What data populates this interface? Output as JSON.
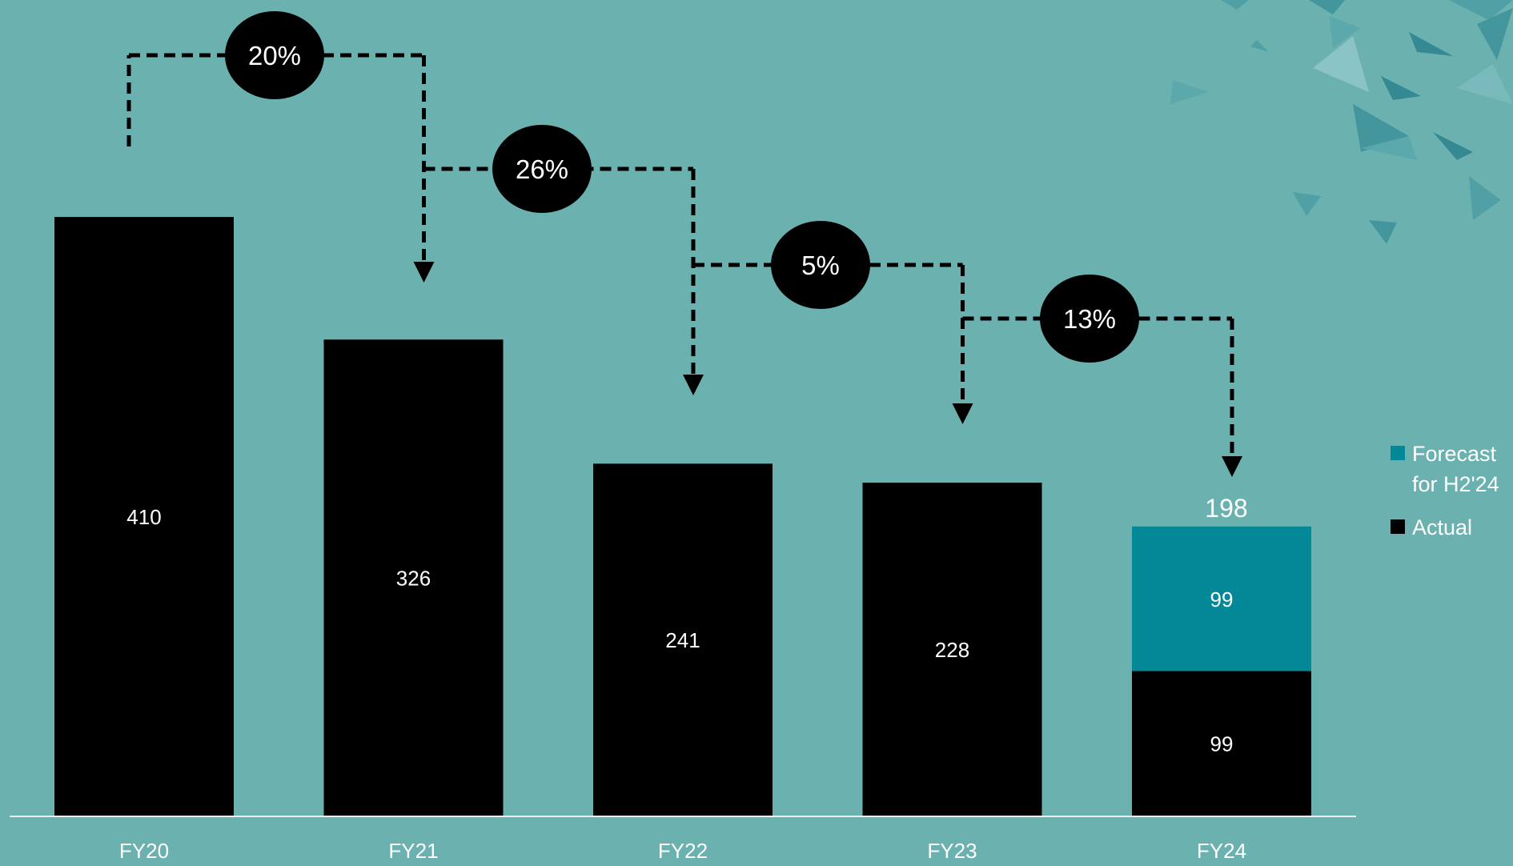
{
  "colors": {
    "background": "#6bb1b0",
    "actual": "#000000",
    "forecast": "#028896",
    "label_text": "#ffffff",
    "axis": "#e6f1f1",
    "decor": "#4a9da3"
  },
  "chart_data": {
    "type": "bar",
    "stacked": true,
    "categories": [
      "FY20",
      "FY21",
      "FY22",
      "FY23",
      "FY24"
    ],
    "series": [
      {
        "name": "Actual",
        "color": "#000000",
        "values": [
          410,
          326,
          241,
          228,
          99
        ]
      },
      {
        "name": "Forecast for H2'24",
        "color": "#028896",
        "values": [
          0,
          0,
          0,
          0,
          99
        ]
      }
    ],
    "data_labels": {
      "Actual": [
        "410",
        "326",
        "241",
        "228",
        "99"
      ],
      "Forecast for H2'24": [
        "",
        "",
        "",
        "",
        "99"
      ]
    },
    "totals": [
      "",
      "",
      "",
      "",
      "198"
    ],
    "changes": [
      {
        "from": "FY20",
        "to": "FY21",
        "label": "20%"
      },
      {
        "from": "FY21",
        "to": "FY22",
        "label": "26%"
      },
      {
        "from": "FY22",
        "to": "FY23",
        "label": "5%"
      },
      {
        "from": "FY23",
        "to": "FY24",
        "label": "13%"
      }
    ],
    "legend": {
      "position": "right",
      "items": [
        {
          "label_line1": "Forecast",
          "label_line2": "for H2'24",
          "color": "#028896"
        },
        {
          "label_line1": "Actual",
          "label_line2": "",
          "color": "#000000"
        }
      ]
    },
    "ylim": [
      0,
      410
    ],
    "grid": false,
    "title": "",
    "xlabel": "",
    "ylabel": ""
  }
}
